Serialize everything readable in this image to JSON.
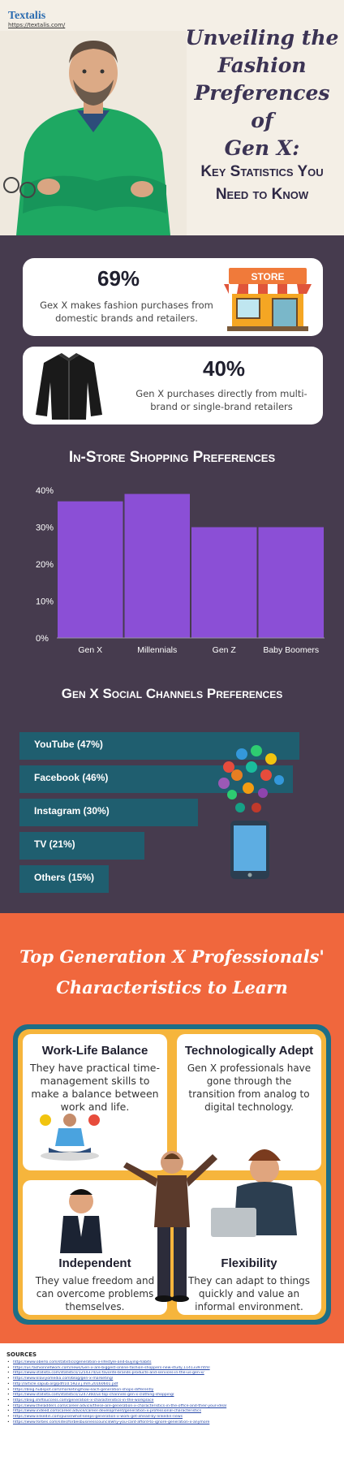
{
  "header": {
    "logo": "Textalis",
    "logo_url": "https://textalis.com/",
    "title_lines": [
      "Unveiling the",
      "Fashion",
      "Preferences of",
      "Gen X:"
    ],
    "subtitle_lines": [
      "Key Statistics You",
      "Need to Know"
    ]
  },
  "stats": [
    {
      "percent": "69%",
      "desc_lines": [
        "Gex X makes fashion purchases from",
        "domestic brands and retailers."
      ],
      "icon": "store-icon",
      "icon_text": "STORE"
    },
    {
      "percent": "40%",
      "desc_lines": [
        "Gen X purchases directly from multi-",
        "brand or single-brand retailers"
      ],
      "icon": "jacket-icon"
    }
  ],
  "instore": {
    "title": "In-Store Shopping Preferences",
    "chart_data": {
      "type": "bar",
      "categories": [
        "Gen X",
        "Millennials",
        "Gen Z",
        "Baby Boomers"
      ],
      "values": [
        37,
        39,
        30,
        30
      ],
      "ylim": [
        0,
        40
      ],
      "yticks": [
        "0%",
        "10%",
        "20%",
        "30%",
        "40%"
      ],
      "color": "#8b4fd6",
      "grid": false
    }
  },
  "social": {
    "title": "Gen X Social Channels Preferences",
    "chart_data": {
      "type": "bar",
      "orientation": "horizontal",
      "categories": [
        "YouTube (47%)",
        "Facebook (46%)",
        "Instagram (30%)",
        "TV (21%)",
        "Others (15%)"
      ],
      "values": [
        47,
        46,
        30,
        21,
        15
      ],
      "color": "#1f5e6f"
    },
    "icon": "smartphone-apps-icon"
  },
  "characteristics": {
    "title_lines": [
      "Top Generation X Professionals'",
      "Characteristics to Learn"
    ],
    "items": [
      {
        "heading": "Work-Life Balance",
        "text_lines": [
          "They have practical time-",
          "management skills to",
          "make a balance between",
          "work and life."
        ]
      },
      {
        "heading": "Technologically Adept",
        "text_lines": [
          "Gen X professionals have",
          "gone through the",
          "transition from analog to",
          "digital technology."
        ]
      },
      {
        "heading": "Independent",
        "text_lines": [
          "They value freedom and",
          "can overcome problems",
          "themselves."
        ]
      },
      {
        "heading": "Flexibility",
        "text_lines": [
          "They can adapt to things",
          "quickly and value an",
          "informal environment."
        ]
      }
    ]
  },
  "sources": {
    "title": "SOURCES",
    "items": [
      "https://www.oberlo.com/statistics/generation-x-lifestyle-and-buying-habits",
      "https://us.fashionnetwork.com/news/Gen-x-are-biggest-online-fashion-shoppers-new-study,1141339.html",
      "https://www.statista.com/statistics/1254374/us-favorite-brands-products-and-services-in-the-us-gen-x/",
      "https://www.klaviyomedia.com/blog/gen-x-marketing/",
      "http://article.sapub.org/pdf/10.5923.j.mm.20160601.pdf",
      "https://blog.hubspot.com/marketing/how-each-generation-shops-differently",
      "https://www.statista.com/statistics/1247360/us-top-channels-gen-x-clothing-shopping/",
      "https://blog.shiftsuccess.com/generation-x-characteristics-in-the-workplace",
      "https://www.theladders.com/career-advice/these-are-generation-x-characteristics-in-the-office-and-their-your-ideal",
      "https://www.indeed.com/career-advice/career-development/generation-x-professional-characteristics",
      "https://www.linkedin.com/pulse/what-keeps-generation-x-work-get-ahead-by-linkedin-news",
      "https://www.forbes.com/sites/forbesbusinesscouncil/why-you-cant-afford-to-ignore-generation-x-anymore"
    ]
  }
}
